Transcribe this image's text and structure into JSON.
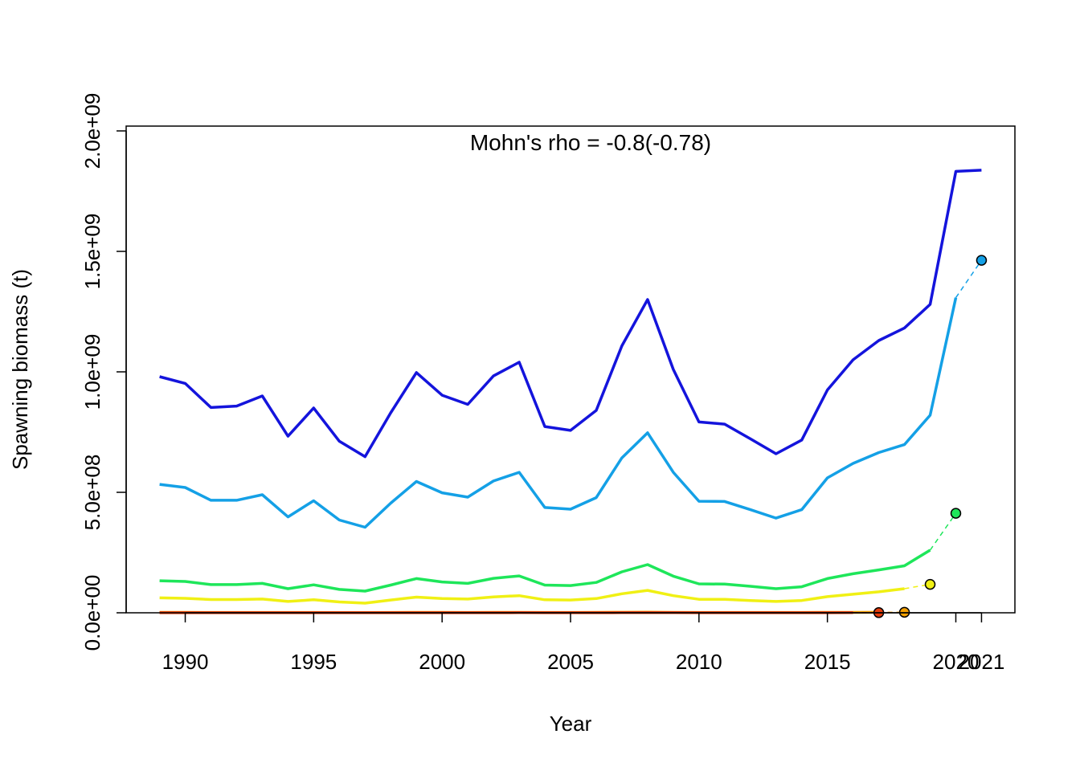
{
  "chart_data": {
    "type": "line",
    "title": "",
    "annotation": "Mohn's rho = -0.8(-0.78)",
    "xlabel": "Year",
    "ylabel": "Spawning biomass (t)",
    "xlim": [
      1987.7,
      2022.3
    ],
    "ylim": [
      0,
      2020000000
    ],
    "xticks": [
      1990,
      1995,
      2000,
      2005,
      2010,
      2015,
      2020,
      2021
    ],
    "xtick_labels": [
      "1990",
      "1995",
      "2000",
      "2005",
      "2010",
      "2015",
      "2020",
      "2021"
    ],
    "yticks": [
      0,
      500000000,
      1000000000,
      1500000000,
      2000000000
    ],
    "ytick_labels": [
      "0.0e+00",
      "5.0e+08",
      "1.0e+09",
      "1.5e+09",
      "2.0e+09"
    ],
    "grid": false,
    "legend": "none",
    "series": [
      {
        "color": "#1414dc",
        "x": [
          1989,
          1990,
          1991,
          1992,
          1993,
          1994,
          1995,
          1996,
          1997,
          1998,
          1999,
          2000,
          2001,
          2002,
          2003,
          2004,
          2005,
          2006,
          2007,
          2008,
          2009,
          2010,
          2011,
          2012,
          2013,
          2014,
          2015,
          2016,
          2017,
          2018,
          2019,
          2020,
          2021
        ],
        "values": [
          980000000,
          952000000,
          852000000,
          858000000,
          900000000,
          733000000,
          850000000,
          712000000,
          648000000,
          830000000,
          997000000,
          903000000,
          865000000,
          983000000,
          1040000000,
          773000000,
          757000000,
          840000000,
          1108000000,
          1300000000,
          1010000000,
          792000000,
          783000000,
          722000000,
          660000000,
          717000000,
          925000000,
          1050000000,
          1130000000,
          1182000000,
          1280000000,
          1832000000,
          1837000000
        ],
        "peel_x": [],
        "peel_values": [],
        "end_x": null,
        "end_value": null
      },
      {
        "color": "#14a0e6",
        "x": [
          1989,
          1990,
          1991,
          1992,
          1993,
          1994,
          1995,
          1996,
          1997,
          1998,
          1999,
          2000,
          2001,
          2002,
          2003,
          2004,
          2005,
          2006,
          2007,
          2008,
          2009,
          2010,
          2011,
          2012,
          2013,
          2014,
          2015,
          2016,
          2017,
          2018,
          2019,
          2020
        ],
        "values": [
          533000000,
          520000000,
          467000000,
          467000000,
          490000000,
          398000000,
          465000000,
          385000000,
          355000000,
          455000000,
          545000000,
          498000000,
          480000000,
          547000000,
          583000000,
          437000000,
          430000000,
          478000000,
          643000000,
          747000000,
          583000000,
          463000000,
          462000000,
          428000000,
          393000000,
          428000000,
          560000000,
          620000000,
          665000000,
          698000000,
          820000000,
          1308000000
        ],
        "peel_x": [
          2020,
          2021
        ],
        "peel_values": [
          1308000000,
          1463000000
        ],
        "end_x": 2021,
        "end_value": 1463000000
      },
      {
        "color": "#1ee65a",
        "x": [
          1989,
          1990,
          1991,
          1992,
          1993,
          1994,
          1995,
          1996,
          1997,
          1998,
          1999,
          2000,
          2001,
          2002,
          2003,
          2004,
          2005,
          2006,
          2007,
          2008,
          2009,
          2010,
          2011,
          2012,
          2013,
          2014,
          2015,
          2016,
          2017,
          2018,
          2019
        ],
        "values": [
          133000000,
          130000000,
          117000000,
          117000000,
          122000000,
          100000000,
          116000000,
          97000000,
          90000000,
          115000000,
          142000000,
          128000000,
          122000000,
          143000000,
          153000000,
          115000000,
          113000000,
          126000000,
          170000000,
          200000000,
          152000000,
          120000000,
          119000000,
          110000000,
          100000000,
          108000000,
          142000000,
          162000000,
          178000000,
          195000000,
          260000000
        ],
        "peel_x": [
          2019,
          2020
        ],
        "peel_values": [
          260000000,
          413000000
        ],
        "end_x": 2020,
        "end_value": 413000000
      },
      {
        "color": "#f0f014",
        "x": [
          1989,
          1990,
          1991,
          1992,
          1993,
          1994,
          1995,
          1996,
          1997,
          1998,
          1999,
          2000,
          2001,
          2002,
          2003,
          2004,
          2005,
          2006,
          2007,
          2008,
          2009,
          2010,
          2011,
          2012,
          2013,
          2014,
          2015,
          2016,
          2017,
          2018
        ],
        "values": [
          62000000,
          60000000,
          55000000,
          55000000,
          57000000,
          47000000,
          54000000,
          45000000,
          40000000,
          53000000,
          65000000,
          59000000,
          57000000,
          66000000,
          71000000,
          54000000,
          53000000,
          59000000,
          79000000,
          93000000,
          71000000,
          56000000,
          56000000,
          51000000,
          47000000,
          51000000,
          67000000,
          77000000,
          87000000,
          100000000
        ],
        "peel_x": [
          2018,
          2019
        ],
        "peel_values": [
          100000000,
          118000000
        ],
        "end_x": 2019,
        "end_value": 118000000
      },
      {
        "color": "#f5a000",
        "x": [
          1989,
          1990,
          1991,
          1992,
          1993,
          1994,
          1995,
          1996,
          1997,
          1998,
          1999,
          2000,
          2001,
          2002,
          2003,
          2004,
          2005,
          2006,
          2007,
          2008,
          2009,
          2010,
          2011,
          2012,
          2013,
          2014,
          2015,
          2016,
          2017
        ],
        "values": [
          1500000,
          1500000,
          1400000,
          1400000,
          1400000,
          1200000,
          1400000,
          1100000,
          1000000,
          1300000,
          1600000,
          1500000,
          1400000,
          1600000,
          1700000,
          1300000,
          1300000,
          1500000,
          1900000,
          2200000,
          1700000,
          1400000,
          1400000,
          1300000,
          1200000,
          1300000,
          1600000,
          1800000,
          2000000
        ],
        "peel_x": [
          2017,
          2018
        ],
        "peel_values": [
          2000000,
          2200000
        ],
        "end_x": 2018,
        "end_value": 2200000
      },
      {
        "color": "#e63c0a",
        "x": [
          1989,
          1990,
          1991,
          1992,
          1993,
          1994,
          1995,
          1996,
          1997,
          1998,
          1999,
          2000,
          2001,
          2002,
          2003,
          2004,
          2005,
          2006,
          2007,
          2008,
          2009,
          2010,
          2011,
          2012,
          2013,
          2014,
          2015,
          2016
        ],
        "values": [
          500000,
          500000,
          500000,
          500000,
          500000,
          400000,
          500000,
          400000,
          400000,
          400000,
          500000,
          500000,
          500000,
          500000,
          600000,
          400000,
          400000,
          500000,
          600000,
          700000,
          600000,
          500000,
          500000,
          400000,
          400000,
          400000,
          500000,
          600000
        ],
        "peel_x": [
          2016,
          2017
        ],
        "peel_values": [
          600000,
          700000
        ],
        "end_x": 2017,
        "end_value": 700000
      }
    ]
  }
}
